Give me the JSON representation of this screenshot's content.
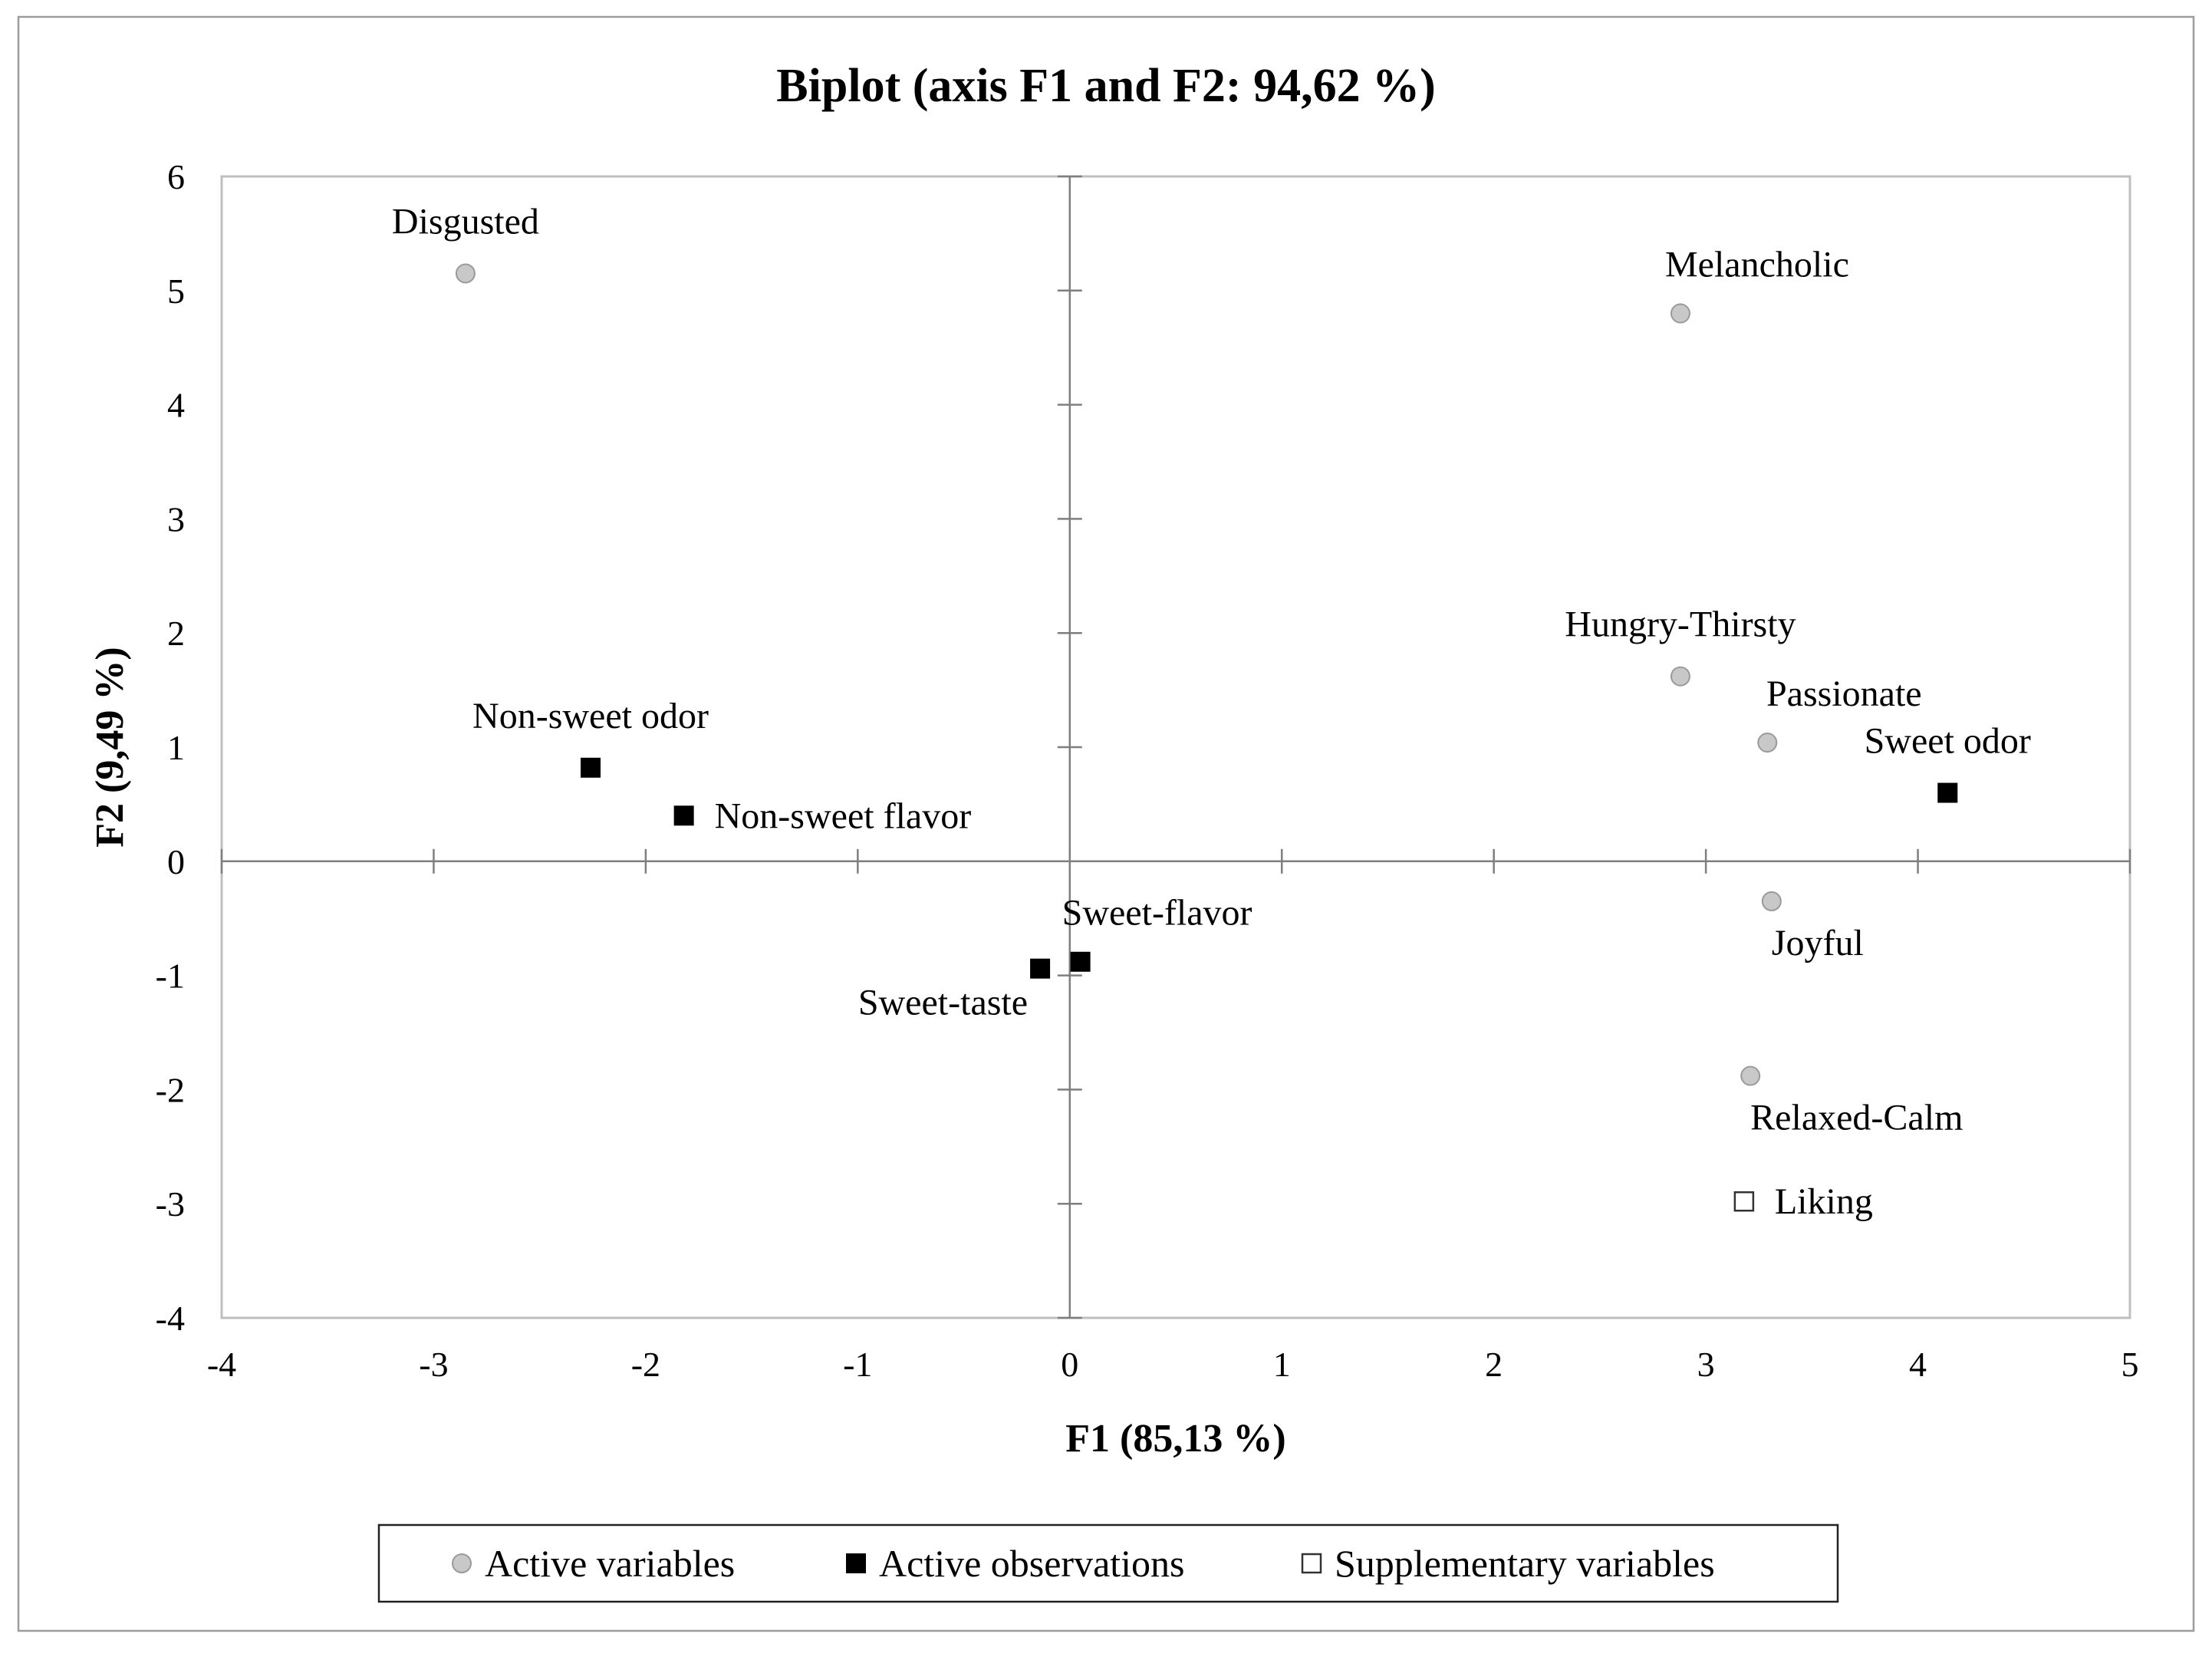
{
  "chart_data": {
    "type": "scatter",
    "title": "Biplot (axis F1 and F2: 94,62 %)",
    "xlabel": "F1 (85,13 %)",
    "ylabel": "F2 (9,49 %)",
    "xlim": [
      -4,
      5
    ],
    "ylim": [
      -4,
      6
    ],
    "xticks": [
      -4,
      -3,
      -2,
      -1,
      0,
      1,
      2,
      3,
      4,
      5
    ],
    "yticks": [
      -4,
      -3,
      -2,
      -1,
      0,
      1,
      2,
      3,
      4,
      5,
      6
    ],
    "grid": false,
    "legend_position": "bottom",
    "colors": {
      "active_variables_fill": "#c8c8c8",
      "active_variables_stroke": "#9a9a9a",
      "active_observations": "#000000",
      "supplementary_fill": "#ffffff",
      "supplementary_stroke": "#333333",
      "axis": "#7f7f7f",
      "frame": "#bfbfbf",
      "text": "#000000"
    },
    "series": [
      {
        "name": "Active variables",
        "marker": "circle",
        "points": [
          {
            "label": "Disgusted",
            "x": -2.85,
            "y": 5.15,
            "label_pos": "above"
          },
          {
            "label": "Melancholic",
            "x": 2.88,
            "y": 4.8,
            "label_pos": "above-right"
          },
          {
            "label": "Hungry-Thirsty",
            "x": 2.88,
            "y": 1.62,
            "label_pos": "above"
          },
          {
            "label": "Passionate",
            "x": 3.29,
            "y": 1.04,
            "label_pos": "above-right"
          },
          {
            "label": "Joyful",
            "x": 3.31,
            "y": -0.35,
            "label_pos": "below-right"
          },
          {
            "label": "Relaxed-Calm",
            "x": 3.21,
            "y": -1.88,
            "label_pos": "below-right"
          }
        ]
      },
      {
        "name": "Active observations",
        "marker": "square",
        "points": [
          {
            "label": "Non-sweet odor",
            "x": -2.26,
            "y": 0.82,
            "label_pos": "above"
          },
          {
            "label": "Non-sweet flavor",
            "x": -1.82,
            "y": 0.4,
            "label_pos": "right"
          },
          {
            "label": "Sweet-taste",
            "x": -0.14,
            "y": -0.94,
            "label_pos": "below-left"
          },
          {
            "label": "Sweet-flavor",
            "x": 0.05,
            "y": -0.88,
            "label_pos": "above-right"
          },
          {
            "label": "Sweet odor",
            "x": 4.14,
            "y": 0.6,
            "label_pos": "above"
          }
        ]
      },
      {
        "name": "Supplementary variables",
        "marker": "open-square",
        "points": [
          {
            "label": "Liking",
            "x": 3.18,
            "y": -2.98,
            "label_pos": "right"
          }
        ]
      }
    ]
  }
}
